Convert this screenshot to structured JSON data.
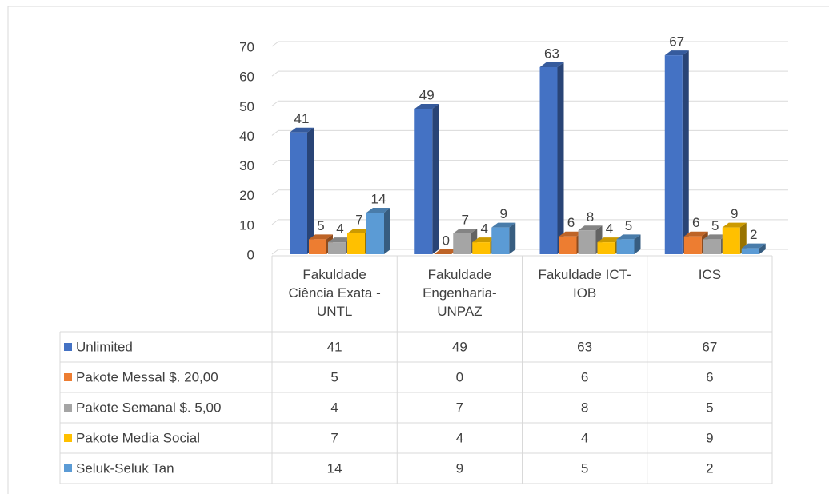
{
  "chart_data": {
    "type": "bar3d",
    "categories": [
      "Fakuldade Ciência Exata - UNTL",
      "Fakuldade Engenharia-UNPAZ",
      "Fakuldade ICT-IOB",
      "ICS"
    ],
    "series": [
      {
        "name": "Unlimited",
        "color": "#4472c4",
        "values": [
          41,
          49,
          63,
          67
        ]
      },
      {
        "name": "Pakote Messal $. 20,00",
        "color": "#ed7d31",
        "values": [
          5,
          0,
          6,
          6
        ]
      },
      {
        "name": "Pakote Semanal $. 5,00",
        "color": "#a5a5a5",
        "values": [
          4,
          7,
          8,
          5
        ]
      },
      {
        "name": "Pakote Media Social",
        "color": "#ffc000",
        "values": [
          7,
          4,
          4,
          9
        ]
      },
      {
        "name": "Seluk-Seluk Tan",
        "color": "#5b9bd5",
        "values": [
          14,
          9,
          5,
          2
        ]
      }
    ],
    "ylim": [
      0,
      70
    ],
    "yticks": [
      0,
      10,
      20,
      30,
      40,
      50,
      60,
      70
    ],
    "grid": true,
    "data_table": true
  }
}
